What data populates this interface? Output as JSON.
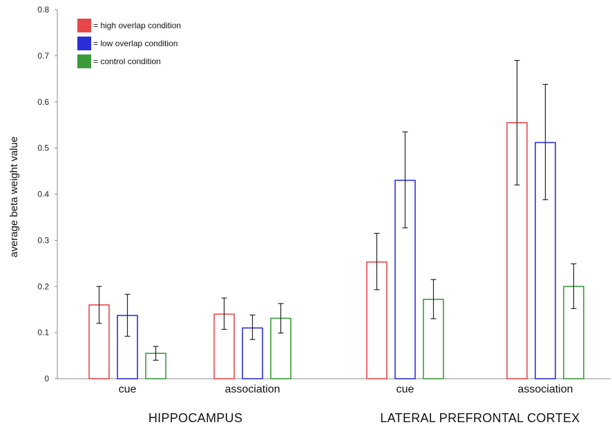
{
  "chart_data": {
    "type": "bar",
    "ylabel": "average beta weight value",
    "xlabel": "",
    "ylim": [
      0,
      0.8
    ],
    "yticks": [
      "0",
      "0.1",
      "0.2",
      "0.3",
      "0.4",
      "0.5",
      "0.6",
      "0.7",
      "0.8"
    ],
    "grid": false,
    "legend_position": "top-left",
    "groups": [
      {
        "name": "HIPPOCAMPUS",
        "categories": [
          "cue",
          "association"
        ]
      },
      {
        "name": "LATERAL PREFRONTAL CORTEX",
        "categories": [
          "cue",
          "association"
        ]
      }
    ],
    "series": [
      {
        "name": "= high overlap condition",
        "color": "#e8474a",
        "values": [
          0.16,
          0.14,
          0.253,
          0.555
        ],
        "err_low": [
          0.12,
          0.107,
          0.193,
          0.42
        ],
        "err_high": [
          0.2,
          0.175,
          0.315,
          0.69
        ]
      },
      {
        "name": "= low overlap condition",
        "color": "#2b2fd6",
        "values": [
          0.137,
          0.11,
          0.43,
          0.512
        ],
        "err_low": [
          0.092,
          0.085,
          0.327,
          0.388
        ],
        "err_high": [
          0.183,
          0.138,
          0.535,
          0.638
        ]
      },
      {
        "name": "= control condition",
        "color": "#3a9a3a",
        "values": [
          0.055,
          0.131,
          0.172,
          0.2
        ],
        "err_low": [
          0.04,
          0.099,
          0.13,
          0.152
        ],
        "err_high": [
          0.07,
          0.163,
          0.215,
          0.249
        ]
      }
    ]
  }
}
